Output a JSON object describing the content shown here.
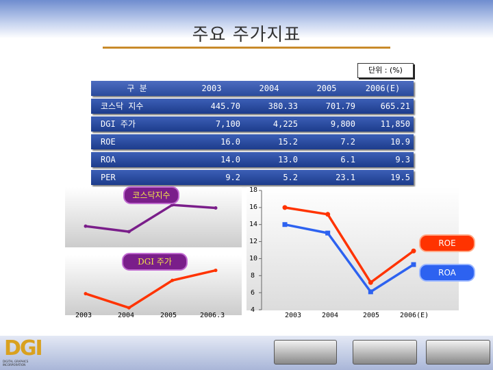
{
  "title": "주요 주가지표",
  "unit_label": "단위 : (%)",
  "table": {
    "header": [
      "구 분",
      "2003",
      "2004",
      "2005",
      "2006(E)"
    ],
    "rows": [
      [
        "코스닥 지수",
        "445.70",
        "380.33",
        "701.79",
        "665.21"
      ],
      [
        "DGI 주가",
        "7,100",
        "4,225",
        "9,800",
        "11,850"
      ],
      [
        "ROE",
        "16.0",
        "15.2",
        "7.2",
        "10.9"
      ],
      [
        "ROA",
        "14.0",
        "13.0",
        "6.1",
        "9.3"
      ],
      [
        "PER",
        "9.2",
        "5.2",
        "23.1",
        "19.5"
      ]
    ]
  },
  "labels": {
    "kospi": "코스닥지수",
    "dgi": "DGI 주가",
    "roe": "ROE",
    "roa": "ROA"
  },
  "left_x_ticks": [
    "2003",
    "2004",
    "2005",
    "2006.3"
  ],
  "right_x_ticks": [
    "2003",
    "2004",
    "2005",
    "2006(E)"
  ],
  "right_y_ticks": [
    "18",
    "16",
    "14",
    "12",
    "10",
    "8",
    "6",
    "4"
  ],
  "footer": {
    "logo_text": "DGI",
    "logo_sub": "DIGITAL GRAPHICS INCORPORATION"
  },
  "chart_data": [
    {
      "type": "line",
      "categories": [
        "2003",
        "2004",
        "2005",
        "2006.3"
      ],
      "series": [
        {
          "name": "코스닥지수",
          "values": [
            445.7,
            380.33,
            701.79,
            665.21
          ],
          "color": "#7a1e8a"
        }
      ],
      "ylim": [
        200,
        900
      ]
    },
    {
      "type": "line",
      "categories": [
        "2003",
        "2004",
        "2005",
        "2006.3"
      ],
      "series": [
        {
          "name": "DGI 주가",
          "values": [
            7100,
            4225,
            9800,
            11850
          ],
          "color": "#ff3300"
        }
      ],
      "ylim": [
        3000,
        15000
      ]
    },
    {
      "type": "line",
      "categories": [
        "2003",
        "2004",
        "2005",
        "2006(E)"
      ],
      "series": [
        {
          "name": "ROE",
          "values": [
            16.0,
            15.2,
            7.2,
            10.9
          ],
          "color": "#ff3300"
        },
        {
          "name": "ROA",
          "values": [
            14.0,
            13.0,
            6.1,
            9.3
          ],
          "color": "#2d62f0"
        }
      ],
      "ylim": [
        4,
        18
      ]
    }
  ]
}
